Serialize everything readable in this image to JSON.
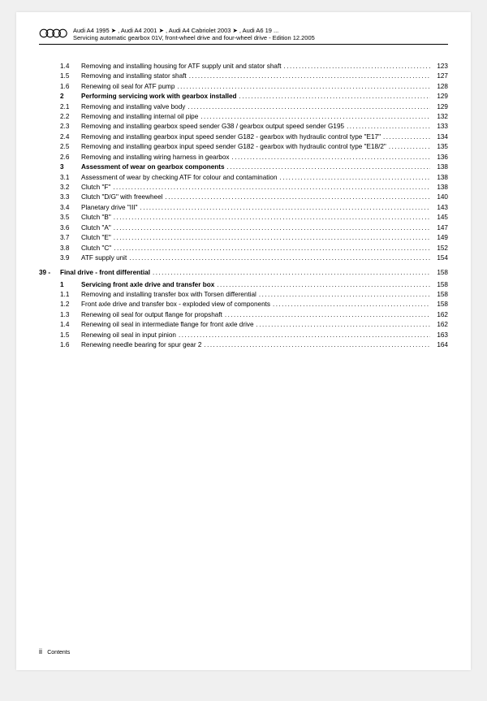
{
  "header": {
    "line1_parts": [
      "Audi A4 1995",
      "Audi A4 2001",
      "Audi A4 Cabriolet 2003",
      "Audi A6 19 ..."
    ],
    "line2": "Servicing automatic gearbox 01V, front-wheel drive and four-wheel drive - Edition 12.2005"
  },
  "toc": [
    {
      "num": "1.4",
      "title": "Removing and installing housing for ATF supply unit and stator shaft",
      "page": "123",
      "level": 2
    },
    {
      "num": "1.5",
      "title": "Removing and installing stator shaft",
      "page": "127",
      "level": 2
    },
    {
      "num": "1.6",
      "title": "Renewing oil seal for ATF pump",
      "page": "128",
      "level": 2
    },
    {
      "num": "2",
      "title": "Performing servicing work with gearbox installed",
      "page": "129",
      "level": 2,
      "bold": true
    },
    {
      "num": "2.1",
      "title": "Removing and installing valve body",
      "page": "129",
      "level": 2
    },
    {
      "num": "2.2",
      "title": "Removing and installing internal oil pipe",
      "page": "132",
      "level": 2
    },
    {
      "num": "2.3",
      "title": "Removing and installing gearbox speed sender G38 / gearbox output speed sender G195",
      "page": "133",
      "level": 2,
      "wrap": true
    },
    {
      "num": "2.4",
      "title": "Removing and installing gearbox input speed sender G182 - gearbox with hydraulic control type \"E17\"",
      "page": "134",
      "level": 2,
      "wrap": true
    },
    {
      "num": "2.5",
      "title": "Removing and installing gearbox input speed sender G182 - gearbox with hydraulic control type \"E18/2\"",
      "page": "135",
      "level": 2,
      "wrap": true
    },
    {
      "num": "2.6",
      "title": "Removing and installing wiring harness in gearbox",
      "page": "136",
      "level": 2
    },
    {
      "num": "3",
      "title": "Assessment of wear on gearbox components",
      "page": "138",
      "level": 2,
      "bold": true
    },
    {
      "num": "3.1",
      "title": "Assessment of wear by checking ATF for colour and contamination",
      "page": "138",
      "level": 2
    },
    {
      "num": "3.2",
      "title": "Clutch \"F\"",
      "page": "138",
      "level": 2
    },
    {
      "num": "3.3",
      "title": "Clutch \"D/G\" with freewheel",
      "page": "140",
      "level": 2
    },
    {
      "num": "3.4",
      "title": "Planetary drive \"III\"",
      "page": "143",
      "level": 2
    },
    {
      "num": "3.5",
      "title": "Clutch \"B\"",
      "page": "145",
      "level": 2
    },
    {
      "num": "3.6",
      "title": "Clutch \"A\"",
      "page": "147",
      "level": 2
    },
    {
      "num": "3.7",
      "title": "Clutch \"E\"",
      "page": "149",
      "level": 2
    },
    {
      "num": "3.8",
      "title": "Clutch \"C\"",
      "page": "152",
      "level": 2
    },
    {
      "num": "3.9",
      "title": "ATF supply unit",
      "page": "154",
      "level": 2
    },
    {
      "num": "39 -",
      "title": "Final drive - front differential",
      "page": "158",
      "level": 0,
      "section": true
    },
    {
      "num": "1",
      "title": "Servicing front axle drive and transfer box",
      "page": "158",
      "level": 2,
      "bold": true
    },
    {
      "num": "1.1",
      "title": "Removing and installing transfer box with Torsen differential",
      "page": "158",
      "level": 2
    },
    {
      "num": "1.2",
      "title": "Front axle drive and transfer box - exploded view of components",
      "page": "158",
      "level": 2
    },
    {
      "num": "1.3",
      "title": "Renewing oil seal for output flange for propshaft",
      "page": "162",
      "level": 2
    },
    {
      "num": "1.4",
      "title": "Renewing oil seal in intermediate flange for front axle drive",
      "page": "162",
      "level": 2
    },
    {
      "num": "1.5",
      "title": "Renewing oil seal in input pinion",
      "page": "163",
      "level": 2
    },
    {
      "num": "1.6",
      "title": "Renewing needle bearing for spur gear 2",
      "page": "164",
      "level": 2
    }
  ],
  "footer": {
    "page_label": "ii",
    "section_label": "Contents"
  }
}
